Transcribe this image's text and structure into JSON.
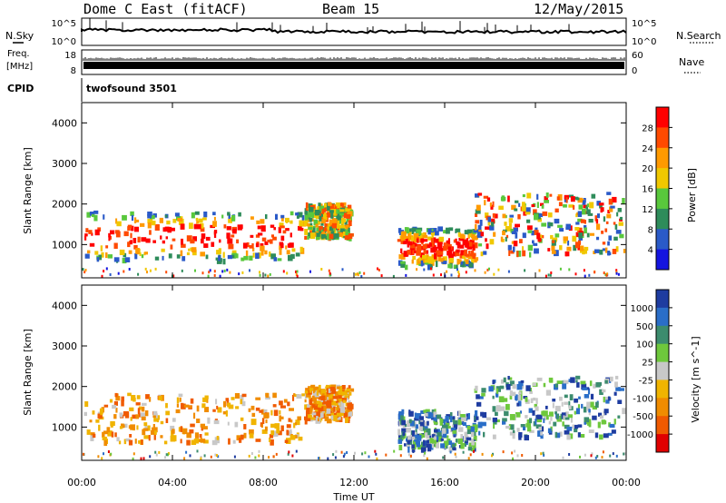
{
  "header": {
    "station": "Dome C East (fitACF)",
    "beam": "Beam 15",
    "date": "12/May/2015"
  },
  "nsky_panel": {
    "left_label": "N.Sky",
    "right_label": "N.Search",
    "y_ticks_left": [
      "10^5",
      "10^0"
    ],
    "y_ticks_right": [
      "10^5",
      "10^0"
    ]
  },
  "freq_panel": {
    "left_label_line1": "Freq.",
    "left_label_line2": "[MHz]",
    "right_label": "Nave",
    "y_ticks_left": [
      "18",
      "8"
    ],
    "y_ticks_right": [
      "60",
      "0"
    ]
  },
  "cpid_panel": {
    "label": "CPID",
    "program": "twofsound 3501"
  },
  "x_axis": {
    "label": "Time UT",
    "ticks": [
      "00:00",
      "04:00",
      "08:00",
      "12:00",
      "16:00",
      "20:00",
      "00:00"
    ],
    "range_hours": [
      0,
      24
    ]
  },
  "chart_data": [
    {
      "type": "heatmap",
      "ylabel": "Slant Range [km]",
      "ylim": [
        180,
        4500
      ],
      "y_ticks": [
        1000,
        2000,
        3000,
        4000
      ],
      "colorbar_label": "Power [dB]",
      "colorbar_ticks": [
        "28",
        "24",
        "20",
        "16",
        "12",
        "8",
        "4"
      ],
      "colorbar_colors": [
        "#ff0000",
        "#ff4a00",
        "#ff9a00",
        "#f0c800",
        "#59c83c",
        "#2e8c5a",
        "#2a5ac8",
        "#1414e0"
      ],
      "regions": [
        {
          "t0": 0.1,
          "t1": 9.8,
          "r0": 650,
          "r1": 1850,
          "level": "high"
        },
        {
          "t0": 9.8,
          "t1": 11.8,
          "r0": 1200,
          "r1": 2050,
          "level": "mid"
        },
        {
          "t0": 13.9,
          "t1": 17.3,
          "r0": 500,
          "r1": 1450,
          "level": "high"
        },
        {
          "t0": 17.3,
          "t1": 23.9,
          "r0": 800,
          "r1": 2300,
          "level": "mixed"
        }
      ]
    },
    {
      "type": "heatmap",
      "ylabel": "Slant Range [km]",
      "ylim": [
        180,
        4500
      ],
      "y_ticks": [
        1000,
        2000,
        3000,
        4000
      ],
      "colorbar_label": "Velocity [m s^-1]",
      "colorbar_ticks": [
        "1000",
        "500",
        "100",
        "25",
        "-25",
        "-100",
        "-500",
        "-1000"
      ],
      "colorbar_colors": [
        "#1e3ca0",
        "#2a6ec8",
        "#3c8c6e",
        "#6ec83c",
        "#c8c8c8",
        "#f0b400",
        "#f08c00",
        "#f05a00",
        "#e00000"
      ],
      "regions": [
        {
          "t0": 0.1,
          "t1": 9.8,
          "r0": 650,
          "r1": 1850,
          "level": "negative"
        },
        {
          "t0": 9.8,
          "t1": 11.8,
          "r0": 1200,
          "r1": 2050,
          "level": "negative"
        },
        {
          "t0": 13.9,
          "t1": 17.3,
          "r0": 500,
          "r1": 1450,
          "level": "positive"
        },
        {
          "t0": 17.3,
          "t1": 23.9,
          "r0": 800,
          "r1": 2300,
          "level": "positive"
        }
      ]
    }
  ]
}
